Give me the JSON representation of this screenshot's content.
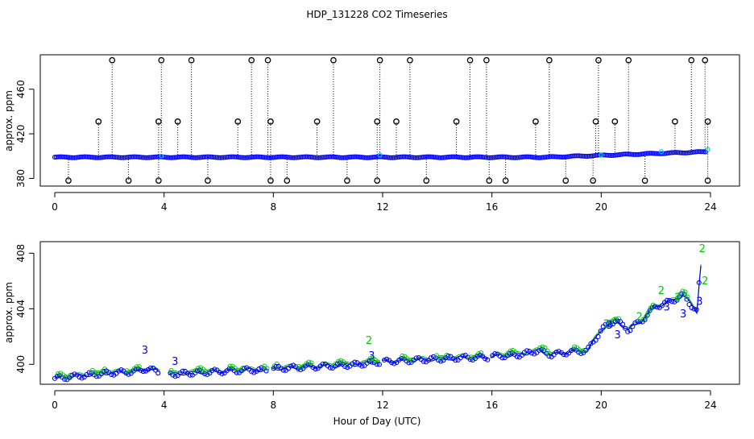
{
  "figure": {
    "title": "HDP_131228  CO2 Timeseries",
    "xlabel": "Hour of Day (UTC)",
    "colors": {
      "primary": "#0000ff",
      "secondary": "#00cc00",
      "outlier": "#000000",
      "cyan": "#00cccc"
    }
  },
  "chart_data": [
    {
      "type": "scatter",
      "panel": "top",
      "title": "",
      "xlabel": "",
      "ylabel": "approx. ppm",
      "xlim": [
        0,
        24
      ],
      "ylim": [
        376,
        488
      ],
      "xticks": [
        "0",
        "4",
        "8",
        "12",
        "16",
        "20",
        "24"
      ],
      "yticks": [
        "380",
        "420",
        "460"
      ],
      "baseline": {
        "start": 399,
        "end": 404,
        "hours": [
          0,
          24
        ]
      },
      "spikes_high": [
        2.1,
        3.9,
        5.0,
        7.2,
        7.8,
        10.2,
        11.9,
        13.0,
        15.2,
        15.8,
        18.1,
        19.9,
        21.0,
        23.3,
        23.8
      ],
      "spikes_mid": [
        1.6,
        3.8,
        4.5,
        6.7,
        7.9,
        9.6,
        11.8,
        12.5,
        14.7,
        17.6,
        19.8,
        20.5,
        22.7,
        23.9
      ],
      "spikes_low": [
        0.5,
        2.7,
        3.8,
        5.6,
        7.9,
        8.5,
        10.7,
        11.8,
        13.6,
        15.9,
        16.5,
        18.7,
        19.7,
        21.6,
        23.9
      ],
      "series": [
        {
          "name": "",
          "color": "#0000ff"
        },
        {
          "name": "",
          "color": "#00cc00"
        },
        {
          "name": "",
          "color": "#000000"
        }
      ]
    },
    {
      "type": "line",
      "panel": "bottom",
      "title": "",
      "xlabel": "",
      "ylabel": "approx. ppm",
      "xlim": [
        0,
        24
      ],
      "ylim": [
        398.8,
        408.6
      ],
      "xticks": [
        "0",
        "4",
        "8",
        "12",
        "16",
        "20",
        "24"
      ],
      "yticks": [
        "400",
        "404",
        "408"
      ],
      "trend_points": [
        [
          0,
          399.1
        ],
        [
          1,
          399.3
        ],
        [
          2,
          399.5
        ],
        [
          3,
          399.6
        ],
        [
          3.3,
          399.8
        ],
        [
          3.8,
          399.6
        ],
        [
          4.2,
          399.4
        ],
        [
          5,
          399.5
        ],
        [
          6,
          399.6
        ],
        [
          7,
          399.7
        ],
        [
          7.8,
          399.7
        ],
        [
          8,
          399.8
        ],
        [
          9,
          399.9
        ],
        [
          10,
          400.0
        ],
        [
          11,
          400.1
        ],
        [
          11.5,
          400.2
        ],
        [
          12,
          400.3
        ],
        [
          13,
          400.4
        ],
        [
          14,
          400.5
        ],
        [
          15,
          400.6
        ],
        [
          15.8,
          400.6
        ],
        [
          16,
          400.7
        ],
        [
          17,
          400.8
        ],
        [
          17.7,
          401.1
        ],
        [
          18.2,
          400.8
        ],
        [
          18.8,
          401.0
        ],
        [
          19.5,
          401.1
        ],
        [
          20,
          402.6
        ],
        [
          20.5,
          403.3
        ],
        [
          21,
          402.6
        ],
        [
          21.5,
          403.3
        ],
        [
          22,
          404.3
        ],
        [
          22.5,
          404.6
        ],
        [
          23,
          405.1
        ],
        [
          23.5,
          403.9
        ],
        [
          23.6,
          406.3
        ],
        [
          23.7,
          408.3
        ]
      ],
      "labels_3": [
        [
          3.3,
          401.0
        ],
        [
          4.4,
          400.2
        ],
        [
          11.6,
          400.6
        ],
        [
          20.3,
          402.8
        ],
        [
          20.6,
          402.1
        ],
        [
          22.4,
          404.1
        ],
        [
          23.0,
          403.6
        ],
        [
          23.6,
          404.5
        ]
      ],
      "labels_2": [
        [
          11.5,
          401.7
        ],
        [
          20.2,
          402.9
        ],
        [
          21.4,
          403.4
        ],
        [
          22.2,
          405.3
        ],
        [
          22.8,
          404.8
        ],
        [
          23.7,
          408.3
        ],
        [
          23.8,
          406.0
        ]
      ],
      "series": [
        {
          "name": "",
          "color": "#0000ff",
          "marker": "3"
        },
        {
          "name": "",
          "color": "#00cc00",
          "marker": "2"
        }
      ]
    }
  ]
}
